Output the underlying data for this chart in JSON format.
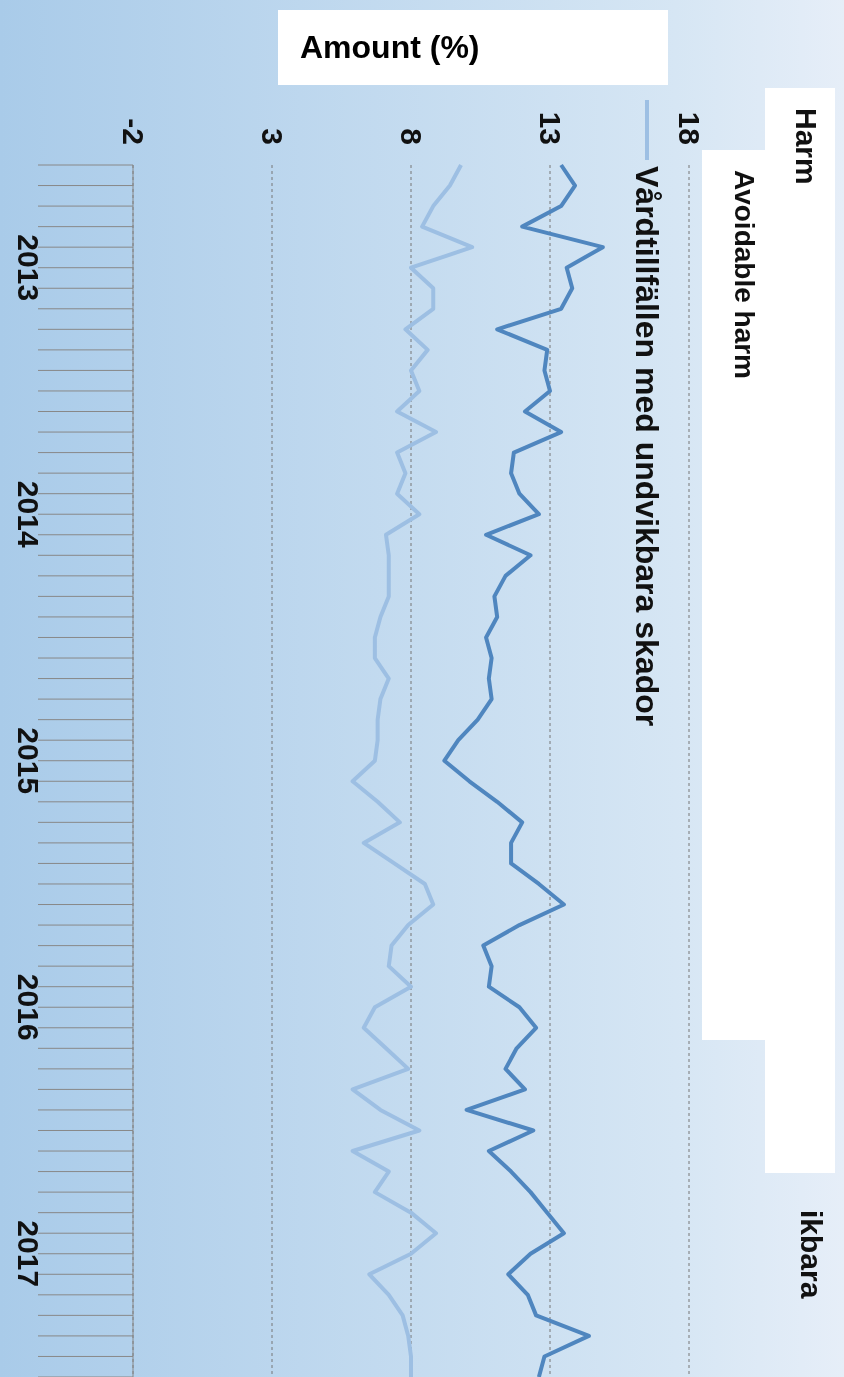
{
  "chart_data": {
    "type": "line",
    "ylabel": "Amount (%)",
    "categories": [
      null,
      null,
      null,
      null,
      null,
      "2013",
      null,
      null,
      null,
      null,
      null,
      null,
      null,
      null,
      null,
      null,
      null,
      "2014",
      null,
      null,
      null,
      null,
      null,
      null,
      null,
      null,
      null,
      null,
      null,
      "2015",
      null,
      null,
      null,
      null,
      null,
      null,
      null,
      null,
      null,
      null,
      null,
      "2016",
      null,
      null,
      null,
      null,
      null,
      null,
      null,
      null,
      null,
      null,
      null,
      "2017",
      null,
      null,
      null,
      null,
      null,
      null
    ],
    "series": [
      {
        "color": "#4f86bf",
        "values": [
          13.4,
          13.9,
          13.4,
          12.0,
          14.9,
          13.6,
          13.8,
          13.4,
          11.1,
          12.9,
          12.8,
          13.0,
          12.1,
          13.4,
          11.7,
          11.6,
          11.9,
          12.6,
          10.7,
          12.3,
          11.4,
          11.0,
          11.1,
          10.7,
          10.9,
          10.8,
          10.9,
          10.4,
          9.7,
          9.2,
          10.1,
          11.1,
          12.0,
          11.6,
          11.6,
          12.6,
          13.5,
          11.9,
          10.6,
          10.9,
          10.8,
          11.9,
          12.5,
          11.8,
          11.4,
          12.1,
          10.0,
          12.4,
          10.8,
          11.6,
          12.3,
          12.9,
          13.5,
          12.3,
          11.5,
          12.2,
          12.5,
          14.4,
          12.8,
          12.6
        ]
      },
      {
        "name": "Vårdtillfällen med undvikbara skador",
        "color": "#9dbfe3",
        "values": [
          9.8,
          9.4,
          8.8,
          8.4,
          10.2,
          8.0,
          8.8,
          8.8,
          7.8,
          8.6,
          8.0,
          8.3,
          7.5,
          8.9,
          7.5,
          7.8,
          7.5,
          8.3,
          7.1,
          7.2,
          7.2,
          7.2,
          6.9,
          6.7,
          6.7,
          7.2,
          6.9,
          6.8,
          6.8,
          6.7,
          5.9,
          6.8,
          7.6,
          6.3,
          7.4,
          8.5,
          8.8,
          7.9,
          7.3,
          7.2,
          8.0,
          6.7,
          6.3,
          7.1,
          7.9,
          5.9,
          6.9,
          8.3,
          5.9,
          7.2,
          6.7,
          8.0,
          8.9,
          8.0,
          6.5,
          7.2,
          7.7,
          7.9,
          8.0,
          8.0
        ]
      }
    ],
    "orientation": "horizontal",
    "xlim": [
      -2,
      18
    ],
    "xticks": [
      -2,
      3,
      8,
      13,
      18
    ],
    "grid": "x",
    "legend": "right",
    "annotations": [
      "Harm",
      "Avoidable harm",
      "ikbara"
    ]
  }
}
